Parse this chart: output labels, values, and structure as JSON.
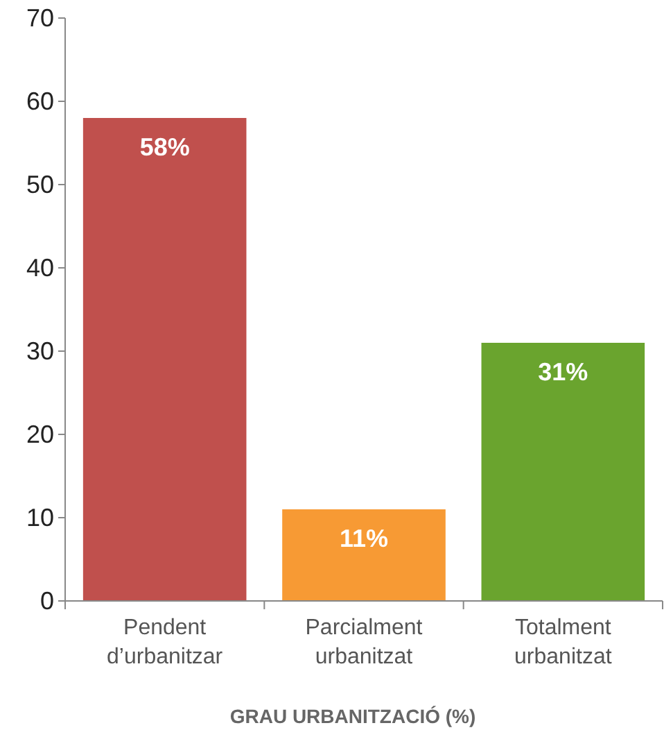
{
  "chart_data": {
    "type": "bar",
    "xlabel": "GRAU URBANITZACIÓ (%)",
    "categories": [
      "Pendent d’urbanitzar",
      "Parcialment urbanitzat",
      "Totalment urbanitzat"
    ],
    "values": [
      58,
      11,
      31
    ],
    "colors": [
      "#c0504d",
      "#f79a34",
      "#6aa42e"
    ],
    "value_labels": [
      "58%",
      "11%",
      "31%"
    ],
    "ylim": [
      0,
      70
    ],
    "yticks": [
      0,
      10,
      20,
      30,
      40,
      50,
      60,
      70
    ],
    "grid": false
  }
}
